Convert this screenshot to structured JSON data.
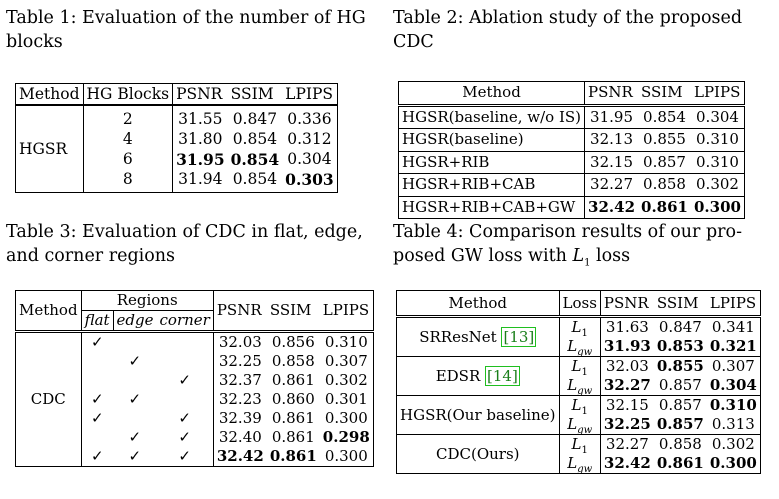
{
  "t1": {
    "caption": "Table 1: Evaluation of the number of HG blocks",
    "caption_l1": "Table 1: Evaluation of the number of HG",
    "caption_l2": "blocks",
    "headers": [
      "Method",
      "HG Blocks",
      "PSNR",
      "SSIM",
      "LPIPS"
    ],
    "method": "HGSR",
    "rows": [
      {
        "blocks": "2",
        "psnr": "31.55",
        "ssim": "0.847",
        "lpips": "0.336"
      },
      {
        "blocks": "4",
        "psnr": "31.80",
        "ssim": "0.854",
        "lpips": "0.312"
      },
      {
        "blocks": "6",
        "psnr": "31.95",
        "ssim": "0.854",
        "lpips": "0.304"
      },
      {
        "blocks": "8",
        "psnr": "31.94",
        "ssim": "0.854",
        "lpips": "0.303"
      }
    ]
  },
  "t2": {
    "caption_l1": "Table 2: Ablation study of the proposed",
    "caption_l2": "CDC",
    "headers": [
      "Method",
      "PSNR",
      "SSIM",
      "LPIPS"
    ],
    "rows": [
      {
        "method": "HGSR(baseline, w/o IS)",
        "psnr": "31.95",
        "ssim": "0.854",
        "lpips": "0.304"
      },
      {
        "method": "HGSR(baseline)",
        "psnr": "32.13",
        "ssim": "0.855",
        "lpips": "0.310"
      },
      {
        "method": "HGSR+RIB",
        "psnr": "32.15",
        "ssim": "0.857",
        "lpips": "0.310"
      },
      {
        "method": "HGSR+RIB+CAB",
        "psnr": "32.27",
        "ssim": "0.858",
        "lpips": "0.302"
      },
      {
        "method": "HGSR+RIB+CAB+GW",
        "psnr": "32.42",
        "ssim": "0.861",
        "lpips": "0.300"
      }
    ]
  },
  "t3": {
    "caption_l1": "Table 3: Evaluation of CDC in flat, edge,",
    "caption_l2": "and corner regions",
    "h_method": "Method",
    "h_regions": "Regions",
    "h_flat": "flat",
    "h_edge": "edge",
    "h_corner": "corner",
    "h_psnr": "PSNR",
    "h_ssim": "SSIM",
    "h_lpips": "LPIPS",
    "method": "CDC",
    "check": "✓",
    "rows": [
      {
        "psnr": "32.03",
        "ssim": "0.856",
        "lpips": "0.310"
      },
      {
        "psnr": "32.25",
        "ssim": "0.858",
        "lpips": "0.307"
      },
      {
        "psnr": "32.37",
        "ssim": "0.861",
        "lpips": "0.302"
      },
      {
        "psnr": "32.23",
        "ssim": "0.860",
        "lpips": "0.301"
      },
      {
        "psnr": "32.39",
        "ssim": "0.861",
        "lpips": "0.300"
      },
      {
        "psnr": "32.40",
        "ssim": "0.861",
        "lpips": "0.298"
      },
      {
        "psnr": "32.42",
        "ssim": "0.861",
        "lpips": "0.300"
      }
    ]
  },
  "t4": {
    "caption_l1": "Table 4: Comparison results of our pro-",
    "caption_l2a": "posed GW loss with ",
    "caption_l2_L": "L",
    "caption_l2_sub": "1",
    "caption_l2b": " loss",
    "headers": [
      "Method",
      "Loss",
      "PSNR",
      "SSIM",
      "LPIPS"
    ],
    "l1": "L",
    "l1_sub": "1",
    "lgw": "L",
    "lgw_sub": "gw",
    "groups": [
      {
        "method": "SRResNet ",
        "cite": "[13]",
        "a": {
          "psnr": "31.63",
          "ssim": "0.847",
          "lpips": "0.341"
        },
        "b": {
          "psnr": "31.93",
          "ssim": "0.853",
          "lpips": "0.321"
        }
      },
      {
        "method": "EDSR ",
        "cite": "[14]",
        "a": {
          "psnr": "32.03",
          "ssim": "0.855",
          "lpips": "0.307"
        },
        "b": {
          "psnr": "32.27",
          "ssim": "0.857",
          "lpips": "0.304"
        }
      },
      {
        "method": "HGSR(Our baseline)",
        "cite": "",
        "a": {
          "psnr": "32.15",
          "ssim": "0.857",
          "lpips": "0.310"
        },
        "b": {
          "psnr": "32.25",
          "ssim": "0.857",
          "lpips": "0.313"
        }
      },
      {
        "method": "CDC(Ours)",
        "cite": "",
        "a": {
          "psnr": "32.27",
          "ssim": "0.858",
          "lpips": "0.302"
        },
        "b": {
          "psnr": "32.42",
          "ssim": "0.861",
          "lpips": "0.300"
        }
      }
    ]
  }
}
